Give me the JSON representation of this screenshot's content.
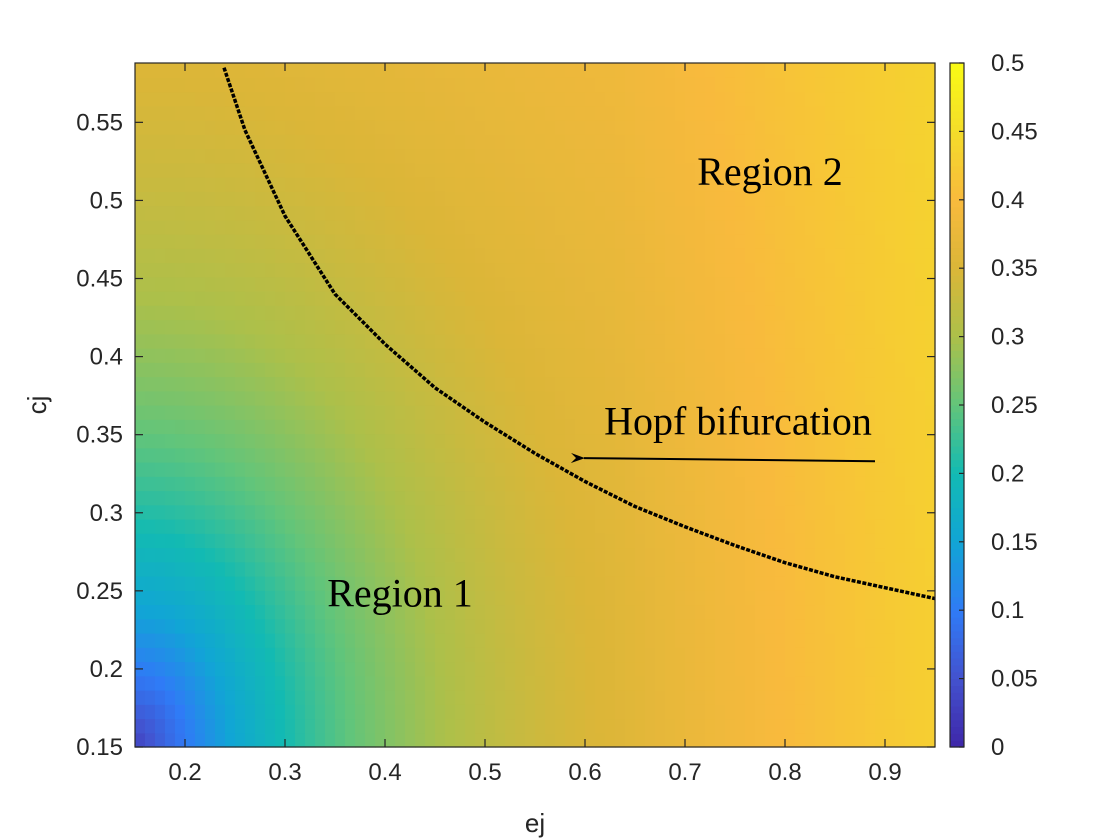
{
  "chart_data": {
    "type": "heatmap",
    "xlabel": "ej",
    "ylabel": "cj",
    "xlim": [
      0.15,
      0.95
    ],
    "ylim": [
      0.15,
      0.588
    ],
    "x_ticks": [
      0.2,
      0.3,
      0.4,
      0.5,
      0.6,
      0.7,
      0.8,
      0.9
    ],
    "x_tick_labels": [
      "0.2",
      "0.3",
      "0.4",
      "0.5",
      "0.6",
      "0.7",
      "0.8",
      "0.9"
    ],
    "y_ticks": [
      0.15,
      0.2,
      0.25,
      0.3,
      0.35,
      0.4,
      0.45,
      0.5,
      0.55
    ],
    "y_tick_labels": [
      "0.15",
      "0.2",
      "0.25",
      "0.3",
      "0.35",
      "0.4",
      "0.45",
      "0.5",
      "0.55"
    ],
    "colorbar": {
      "limits": [
        0,
        0.5
      ],
      "ticks": [
        0,
        0.05,
        0.1,
        0.15,
        0.2,
        0.25,
        0.3,
        0.35,
        0.4,
        0.45,
        0.5
      ],
      "tick_labels": [
        "0",
        "0.05",
        "0.1",
        "0.15",
        "0.2",
        "0.25",
        "0.3",
        "0.35",
        "0.4",
        "0.45",
        "0.5"
      ],
      "colormap": "parula"
    },
    "colormap_stops": [
      {
        "t": 0.0,
        "color": "#3e26a8"
      },
      {
        "t": 0.1,
        "color": "#4352ce"
      },
      {
        "t": 0.2,
        "color": "#2f7bf6"
      },
      {
        "t": 0.3,
        "color": "#11a5d5"
      },
      {
        "t": 0.4,
        "color": "#12bab3"
      },
      {
        "t": 0.5,
        "color": "#62c57a"
      },
      {
        "t": 0.6,
        "color": "#acc04a"
      },
      {
        "t": 0.7,
        "color": "#dbb638"
      },
      {
        "t": 0.8,
        "color": "#f8ba3d"
      },
      {
        "t": 0.9,
        "color": "#f4dc2a"
      },
      {
        "t": 1.0,
        "color": "#f9fb15"
      }
    ],
    "hopf_curve": {
      "x": [
        0.239,
        0.26,
        0.3,
        0.35,
        0.4,
        0.45,
        0.5,
        0.55,
        0.6,
        0.65,
        0.7,
        0.75,
        0.8,
        0.85,
        0.9,
        0.95
      ],
      "y": [
        0.585,
        0.545,
        0.49,
        0.44,
        0.408,
        0.38,
        0.358,
        0.338,
        0.32,
        0.304,
        0.291,
        0.279,
        0.268,
        0.259,
        0.252,
        0.245
      ]
    },
    "annotations": [
      {
        "text": "Region 2",
        "x": 0.785,
        "y": 0.51
      },
      {
        "text": "Region 1",
        "x": 0.415,
        "y": 0.24
      },
      {
        "text": "Hopf bifurcation",
        "x": 0.753,
        "y": 0.35,
        "arrow_from": [
          0.89,
          0.333
        ],
        "arrow_to": [
          0.585,
          0.335
        ]
      }
    ]
  }
}
